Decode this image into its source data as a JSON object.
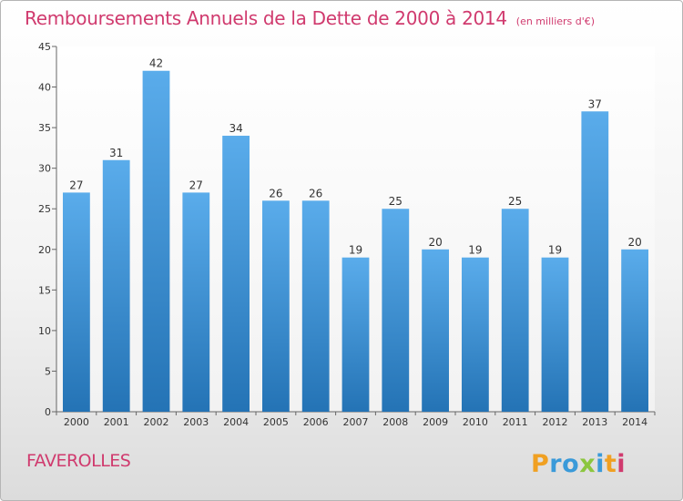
{
  "chart_data": {
    "type": "bar",
    "title": "Remboursements Annuels de la Dette de 2000 à 2014",
    "unit_note": "(en milliers d'€)",
    "categories": [
      "2000",
      "2001",
      "2002",
      "2003",
      "2004",
      "2005",
      "2006",
      "2007",
      "2008",
      "2009",
      "2010",
      "2011",
      "2012",
      "2013",
      "2014"
    ],
    "values": [
      27,
      31,
      42,
      27,
      34,
      26,
      26,
      19,
      25,
      20,
      19,
      25,
      19,
      37,
      20
    ],
    "xlabel": "",
    "ylabel": "",
    "ylim": [
      0,
      45
    ],
    "yticks": [
      0,
      5,
      10,
      15,
      20,
      25,
      30,
      35,
      40,
      45
    ],
    "grid": false,
    "data_labels": true,
    "bar_color_top": "#5aaceb",
    "bar_color_bottom": "#2473b5"
  },
  "footer": {
    "commune": "FAVEROLLES",
    "logo_text": "Proxiti"
  },
  "colors": {
    "title": "#d03a6e",
    "axis": "#555555",
    "text": "#333333"
  }
}
